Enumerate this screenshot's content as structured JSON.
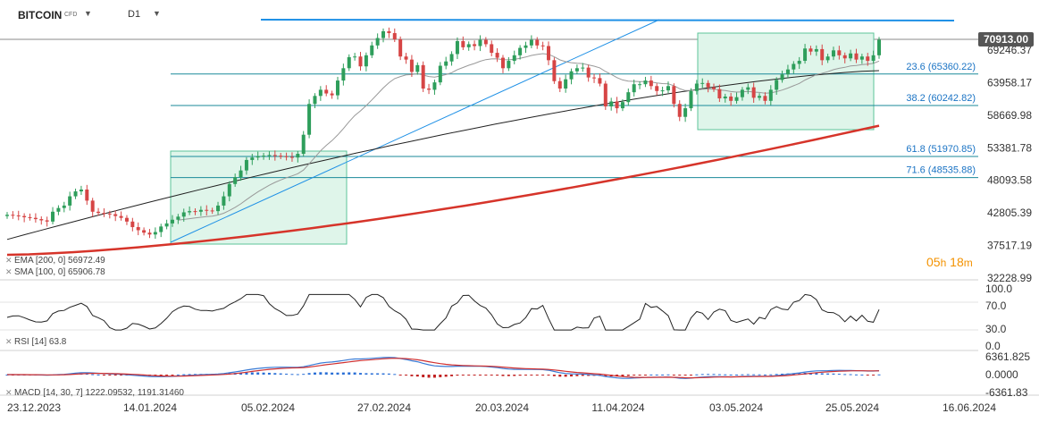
{
  "header": {
    "symbol": "BITCOIN",
    "symbol_type": "CFD",
    "timeframe": "D1"
  },
  "current_price": "70913.00",
  "countdown": {
    "hours": "05",
    "h": "h",
    "minutes": "18",
    "m": "m"
  },
  "fib_levels": [
    {
      "label": "23.6 (65360.22)",
      "value": 65360.22
    },
    {
      "label": "38.2 (60242.82)",
      "value": 60242.82
    },
    {
      "label": "61.8 (51970.85)",
      "value": 51970.85
    },
    {
      "label": "71.6 (48535.88)",
      "value": 48535.88
    }
  ],
  "indicators": {
    "ema": "EMA [200, 0] 56972.49",
    "sma": "SMA [100, 0] 65906.78",
    "rsi": "RSI [14] 63.8",
    "macd": "MACD [14, 30, 7] 1222.09532, 1191.31460"
  },
  "price_axis": {
    "ticks": [
      "69246.37",
      "63958.17",
      "58669.98",
      "53381.78",
      "48093.58",
      "42805.39",
      "37517.19",
      "32228.99"
    ],
    "min": 32228.99,
    "max": 69246.37
  },
  "rsi_axis": [
    "100.0",
    "70.0",
    "30.0",
    "0.0"
  ],
  "macd_axis": [
    "6361.825",
    "0.0000",
    "-6361.83"
  ],
  "date_labels": [
    "23.12.2023",
    "14.01.2024",
    "05.02.2024",
    "27.02.2024",
    "20.03.2024",
    "11.04.2024",
    "03.05.2024",
    "25.05.2024",
    "16.06.2024"
  ],
  "colors": {
    "up": "#2e9e5b",
    "down": "#d64545",
    "ema": "#d6342a",
    "sma": "#222222",
    "fib": "#1a8a9a",
    "trend": "#1e90e6",
    "box_fill": "#dff5ea",
    "box_stroke": "#5cc49a",
    "macd": "#3a7bd5",
    "signal": "#d03030"
  },
  "chart_data": {
    "type": "candlestick",
    "x_range": [
      "2023-12-23",
      "2024-06-16"
    ],
    "y_range": [
      32228.99,
      69246.37
    ],
    "last_close": 70913.0,
    "close_approx": [
      42500,
      42400,
      42300,
      42100,
      42000,
      41800,
      41600,
      41400,
      43000,
      43600,
      44000,
      45500,
      46300,
      46600,
      44800,
      43000,
      42800,
      42700,
      42600,
      42300,
      42000,
      41400,
      40500,
      40000,
      39600,
      39300,
      39700,
      40600,
      41100,
      41700,
      42200,
      42900,
      43100,
      43000,
      43300,
      43200,
      43100,
      44000,
      45500,
      47500,
      48600,
      49700,
      51400,
      51800,
      52000,
      52100,
      52200,
      52100,
      52000,
      51900,
      51800,
      52400,
      55500,
      60500,
      61800,
      62800,
      62200,
      61900,
      64300,
      66300,
      68100,
      68200,
      66600,
      68400,
      70000,
      71200,
      72300,
      72000,
      71000,
      68200,
      67700,
      65700,
      66800,
      63000,
      62800,
      64000,
      66700,
      67400,
      68600,
      70700,
      69700,
      70200,
      69900,
      70900,
      70200,
      68800,
      68000,
      66300,
      67500,
      68400,
      69600,
      70000,
      70900,
      70000,
      69900,
      67600,
      64200,
      63000,
      64500,
      65800,
      66300,
      66400,
      64800,
      64700,
      63800,
      60100,
      60900,
      59800,
      60800,
      62400,
      63700,
      63700,
      64300,
      63400,
      62600,
      62700,
      63400,
      60500,
      58400,
      59800,
      62600,
      63800,
      63900,
      63200,
      62900,
      61400,
      61700,
      61000,
      61600,
      62800,
      63200,
      61500,
      61800,
      61000,
      62800,
      64400,
      65300,
      66100,
      67000,
      67500,
      69500,
      69000,
      69400,
      67600,
      68200,
      69200,
      68400,
      67900,
      68700,
      67700,
      68200,
      67500,
      68400,
      70913
    ],
    "ema_200": {
      "start": 36000,
      "end": 56972.49
    },
    "sma_100": {
      "start": 38500,
      "end": 65906.78
    },
    "fibonacci": [
      {
        "level": 23.6,
        "price": 65360.22
      },
      {
        "level": 38.2,
        "price": 60242.82
      },
      {
        "level": 61.8,
        "price": 51970.85
      },
      {
        "level": 71.6,
        "price": 48535.88
      }
    ],
    "rsi": {
      "period": 14,
      "last": 63.8,
      "range": [
        0,
        100
      ]
    },
    "macd": {
      "params": [
        14,
        30,
        7
      ],
      "macd": 1222.09532,
      "signal": 1191.3146,
      "range": [
        -6361.83,
        6361.825
      ]
    }
  }
}
